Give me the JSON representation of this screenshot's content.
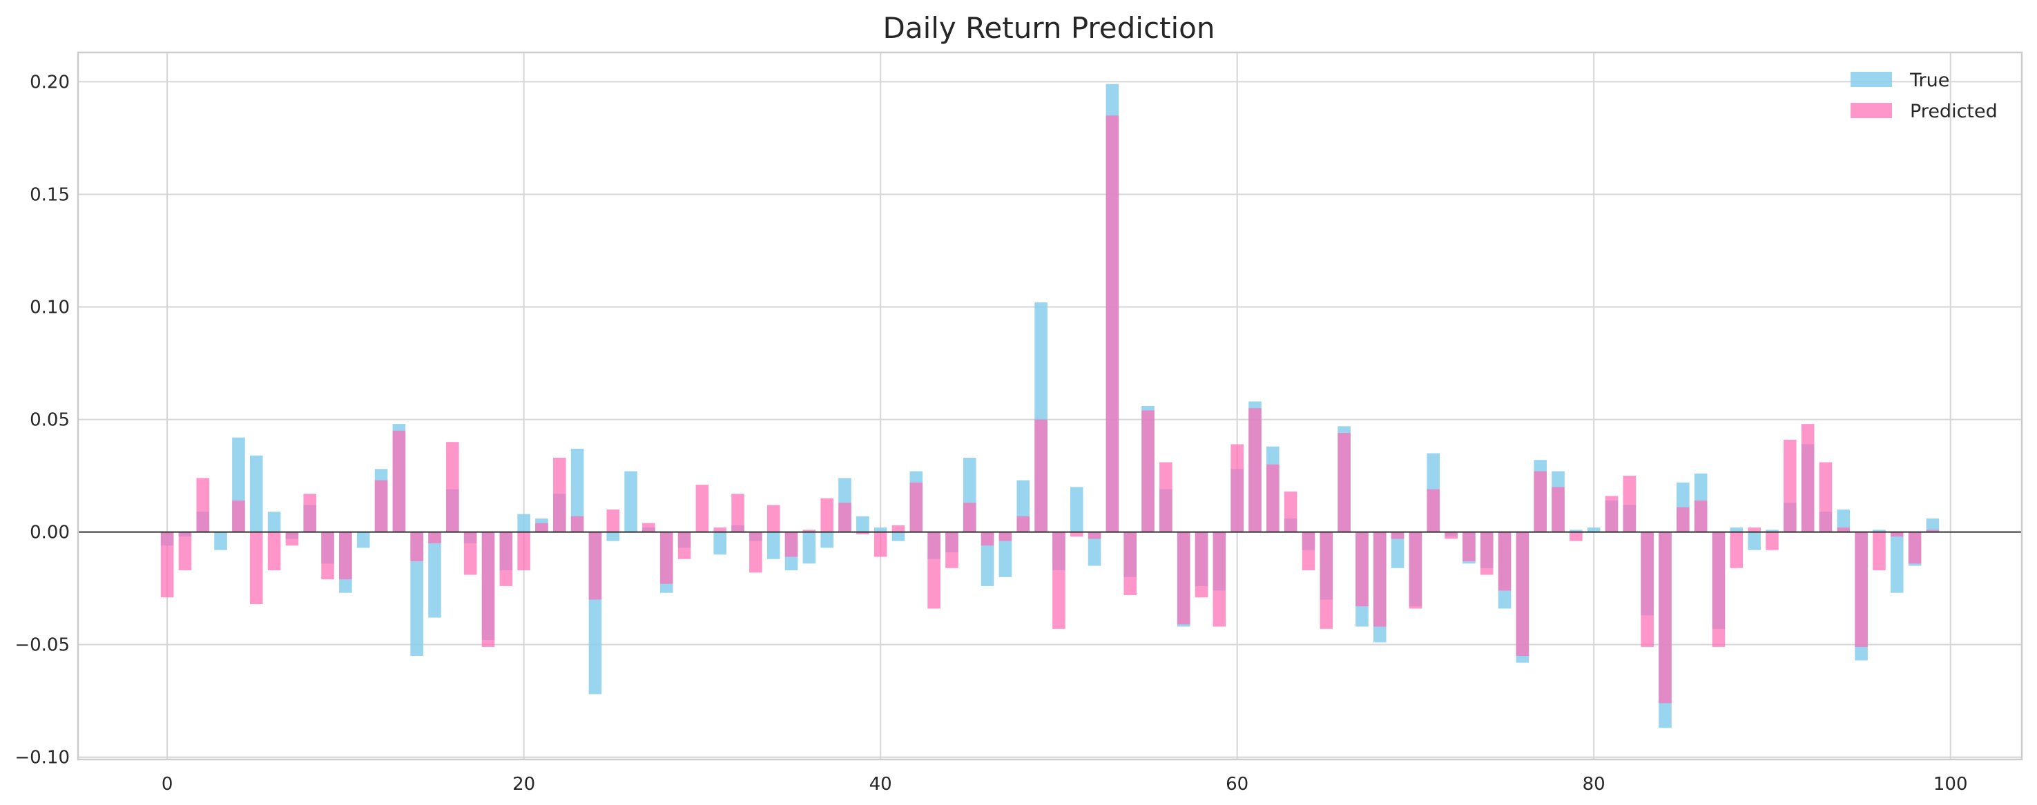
{
  "chart_data": {
    "type": "bar",
    "title": "Daily Return Prediction",
    "xlabel": "",
    "ylabel": "",
    "xlim": [
      -5,
      104
    ],
    "ylim": [
      -0.101,
      0.213
    ],
    "x_ticks": [
      0,
      20,
      40,
      60,
      80,
      100
    ],
    "y_ticks": [
      -0.1,
      -0.05,
      0.0,
      0.05,
      0.1,
      0.15,
      0.2
    ],
    "y_tick_labels": [
      "−0.10",
      "−0.05",
      "0.00",
      "0.05",
      "0.10",
      "0.15",
      "0.20"
    ],
    "grid": true,
    "legend_position": "top-right",
    "x": [
      0,
      1,
      2,
      3,
      4,
      5,
      6,
      7,
      8,
      9,
      10,
      11,
      12,
      13,
      14,
      15,
      16,
      17,
      18,
      19,
      20,
      21,
      22,
      23,
      24,
      25,
      26,
      27,
      28,
      29,
      30,
      31,
      32,
      33,
      34,
      35,
      36,
      37,
      38,
      39,
      40,
      41,
      42,
      43,
      44,
      45,
      46,
      47,
      48,
      49,
      50,
      51,
      52,
      53,
      54,
      55,
      56,
      57,
      58,
      59,
      60,
      61,
      62,
      63,
      64,
      65,
      66,
      67,
      68,
      69,
      70,
      71,
      72,
      73,
      74,
      75,
      76,
      77,
      78,
      79,
      80,
      81,
      82,
      83,
      84,
      85,
      86,
      87,
      88,
      89,
      90,
      91,
      92,
      93,
      94,
      95,
      96,
      97,
      98,
      99
    ],
    "series": [
      {
        "name": "True",
        "color": "#87CEEB",
        "opacity": 0.85,
        "values": [
          -0.006,
          -0.002,
          0.009,
          -0.008,
          0.042,
          0.034,
          0.009,
          -0.003,
          0.012,
          -0.014,
          -0.027,
          -0.007,
          0.028,
          0.048,
          -0.055,
          -0.038,
          0.019,
          -0.005,
          -0.048,
          -0.017,
          0.008,
          0.006,
          0.017,
          0.037,
          -0.072,
          -0.004,
          0.027,
          0.002,
          -0.027,
          -0.007,
          0.0,
          -0.01,
          0.003,
          -0.004,
          -0.012,
          -0.017,
          -0.014,
          -0.007,
          0.024,
          0.007,
          0.002,
          -0.004,
          0.027,
          -0.012,
          -0.009,
          0.033,
          -0.024,
          -0.02,
          0.023,
          0.102,
          -0.017,
          0.02,
          -0.015,
          0.199,
          -0.02,
          0.056,
          0.019,
          -0.042,
          -0.024,
          -0.026,
          0.028,
          0.058,
          0.038,
          0.006,
          -0.008,
          -0.03,
          0.047,
          -0.042,
          -0.049,
          -0.016,
          -0.033,
          0.035,
          -0.002,
          -0.014,
          -0.016,
          -0.034,
          -0.058,
          0.032,
          0.027,
          0.001,
          0.002,
          0.014,
          0.012,
          -0.037,
          -0.087,
          0.022,
          0.026,
          -0.043,
          0.002,
          -0.008,
          0.001,
          0.013,
          0.039,
          0.009,
          0.01,
          -0.057,
          0.001,
          -0.027,
          -0.015,
          0.006
        ]
      },
      {
        "name": "Predicted",
        "color": "#FF69B4",
        "opacity": 0.7,
        "values": [
          -0.029,
          -0.017,
          0.024,
          0.0,
          0.014,
          -0.032,
          -0.017,
          -0.006,
          0.017,
          -0.021,
          -0.021,
          0.0,
          0.023,
          0.045,
          -0.013,
          -0.005,
          0.04,
          -0.019,
          -0.051,
          -0.024,
          -0.017,
          0.004,
          0.033,
          0.007,
          -0.03,
          0.01,
          0.0,
          0.004,
          -0.023,
          -0.012,
          0.021,
          0.002,
          0.017,
          -0.018,
          0.012,
          -0.011,
          0.001,
          0.015,
          0.013,
          -0.001,
          -0.011,
          0.003,
          0.022,
          -0.034,
          -0.016,
          0.013,
          -0.006,
          -0.004,
          0.007,
          0.05,
          -0.043,
          -0.002,
          -0.003,
          0.185,
          -0.028,
          0.054,
          0.031,
          -0.041,
          -0.029,
          -0.042,
          0.039,
          0.055,
          0.03,
          0.018,
          -0.017,
          -0.043,
          0.044,
          -0.033,
          -0.042,
          -0.003,
          -0.034,
          0.019,
          -0.003,
          -0.013,
          -0.019,
          -0.026,
          -0.055,
          0.027,
          0.02,
          -0.004,
          0.0,
          0.016,
          0.025,
          -0.051,
          -0.076,
          0.011,
          0.014,
          -0.051,
          -0.016,
          0.002,
          -0.008,
          0.041,
          0.048,
          0.031,
          0.002,
          -0.051,
          -0.017,
          -0.002,
          -0.014,
          0.001
        ]
      }
    ]
  }
}
